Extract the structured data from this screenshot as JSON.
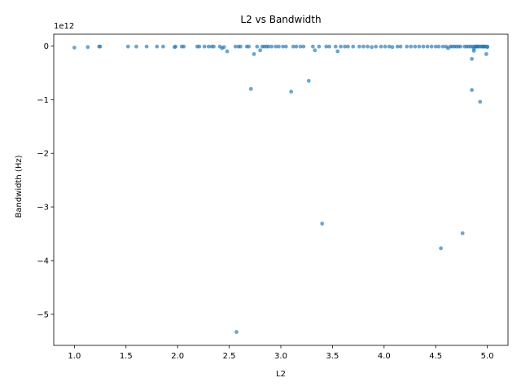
{
  "chart_data": {
    "type": "scatter",
    "title": "L2 vs Bandwidth",
    "xlabel": "L2",
    "ylabel": "Bandwidth (Hz)",
    "y_offset_label": "1e12",
    "xlim": [
      0.8,
      5.2
    ],
    "ylim": [
      -5.58,
      0.22
    ],
    "x_ticks": [
      1.0,
      1.5,
      2.0,
      2.5,
      3.0,
      3.5,
      4.0,
      4.5,
      5.0
    ],
    "x_tick_labels": [
      "1.0",
      "1.5",
      "2.0",
      "2.5",
      "3.0",
      "3.5",
      "4.0",
      "4.5",
      "5.0"
    ],
    "y_ticks": [
      0,
      -1,
      -2,
      -3,
      -4,
      -5
    ],
    "y_tick_labels": [
      "0",
      "−1",
      "−2",
      "−3",
      "−4",
      "−5"
    ],
    "y_unit_multiplier": 1000000000000.0,
    "grid": false,
    "legend": "none",
    "marker_color": "#1f77b4",
    "marker_opacity": 0.65,
    "points": [
      [
        1.0,
        -0.03
      ],
      [
        1.13,
        -0.02
      ],
      [
        1.24,
        -0.01
      ],
      [
        1.25,
        -0.01
      ],
      [
        1.52,
        -0.01
      ],
      [
        1.6,
        -0.01
      ],
      [
        1.7,
        -0.01
      ],
      [
        1.8,
        -0.01
      ],
      [
        1.86,
        -0.01
      ],
      [
        1.97,
        -0.02
      ],
      [
        1.98,
        -0.01
      ],
      [
        2.04,
        -0.01
      ],
      [
        2.06,
        -0.01
      ],
      [
        2.19,
        -0.01
      ],
      [
        2.21,
        -0.01
      ],
      [
        2.26,
        -0.01
      ],
      [
        2.3,
        -0.01
      ],
      [
        2.33,
        -0.01
      ],
      [
        2.35,
        -0.01
      ],
      [
        2.41,
        -0.01
      ],
      [
        2.43,
        -0.04
      ],
      [
        2.45,
        -0.02
      ],
      [
        2.48,
        -0.1
      ],
      [
        2.56,
        -0.01
      ],
      [
        2.59,
        -0.01
      ],
      [
        2.61,
        -0.01
      ],
      [
        2.67,
        -0.01
      ],
      [
        2.69,
        -0.01
      ],
      [
        2.71,
        -0.8
      ],
      [
        2.74,
        -0.15
      ],
      [
        2.77,
        -0.01
      ],
      [
        2.8,
        -0.08
      ],
      [
        2.82,
        -0.01
      ],
      [
        2.84,
        -0.01
      ],
      [
        2.86,
        -0.01
      ],
      [
        2.88,
        -0.01
      ],
      [
        2.91,
        -0.01
      ],
      [
        2.95,
        -0.01
      ],
      [
        2.98,
        -0.01
      ],
      [
        3.02,
        -0.01
      ],
      [
        3.05,
        -0.01
      ],
      [
        3.1,
        -0.85
      ],
      [
        3.12,
        -0.01
      ],
      [
        3.15,
        -0.01
      ],
      [
        3.19,
        -0.01
      ],
      [
        3.22,
        -0.01
      ],
      [
        3.27,
        -0.65
      ],
      [
        3.31,
        -0.01
      ],
      [
        3.33,
        -0.08
      ],
      [
        3.37,
        -0.01
      ],
      [
        3.4,
        -3.31
      ],
      [
        3.44,
        -0.01
      ],
      [
        3.47,
        -0.01
      ],
      [
        3.53,
        -0.01
      ],
      [
        3.55,
        -0.1
      ],
      [
        3.58,
        -0.01
      ],
      [
        3.62,
        -0.01
      ],
      [
        3.65,
        -0.01
      ],
      [
        3.7,
        -0.01
      ],
      [
        3.76,
        -0.01
      ],
      [
        3.8,
        -0.01
      ],
      [
        3.84,
        -0.01
      ],
      [
        3.88,
        -0.02
      ],
      [
        3.92,
        -0.01
      ],
      [
        3.97,
        -0.01
      ],
      [
        4.01,
        -0.01
      ],
      [
        4.05,
        -0.01
      ],
      [
        4.08,
        -0.02
      ],
      [
        4.13,
        -0.01
      ],
      [
        4.16,
        -0.01
      ],
      [
        4.22,
        -0.01
      ],
      [
        4.26,
        -0.01
      ],
      [
        4.3,
        -0.01
      ],
      [
        4.34,
        -0.01
      ],
      [
        4.38,
        -0.01
      ],
      [
        4.42,
        -0.01
      ],
      [
        4.46,
        -0.01
      ],
      [
        4.5,
        -0.01
      ],
      [
        4.53,
        -0.01
      ],
      [
        4.55,
        -3.77
      ],
      [
        4.57,
        -0.01
      ],
      [
        4.6,
        -0.01
      ],
      [
        4.62,
        -0.04
      ],
      [
        4.64,
        -0.01
      ],
      [
        4.66,
        -0.01
      ],
      [
        4.68,
        -0.01
      ],
      [
        4.7,
        -0.01
      ],
      [
        4.72,
        -0.01
      ],
      [
        4.74,
        -0.01
      ],
      [
        4.76,
        -3.49
      ],
      [
        4.78,
        -0.01
      ],
      [
        4.8,
        -0.01
      ],
      [
        4.82,
        -0.01
      ],
      [
        4.84,
        -0.01
      ],
      [
        4.85,
        -0.82
      ],
      [
        4.85,
        -0.24
      ],
      [
        4.86,
        -0.01
      ],
      [
        4.87,
        -0.05
      ],
      [
        4.87,
        -0.09
      ],
      [
        4.88,
        -0.01
      ],
      [
        4.89,
        -0.01
      ],
      [
        4.9,
        -0.01
      ],
      [
        4.91,
        -0.01
      ],
      [
        4.92,
        -0.01
      ],
      [
        4.93,
        -1.04
      ],
      [
        4.94,
        -0.01
      ],
      [
        4.95,
        -0.01
      ],
      [
        4.96,
        -0.01
      ],
      [
        4.97,
        -0.01
      ],
      [
        4.98,
        -0.01
      ],
      [
        4.99,
        -0.15
      ],
      [
        5.0,
        -0.01
      ],
      [
        5.0,
        -0.02
      ],
      [
        2.57,
        -5.33
      ]
    ]
  }
}
